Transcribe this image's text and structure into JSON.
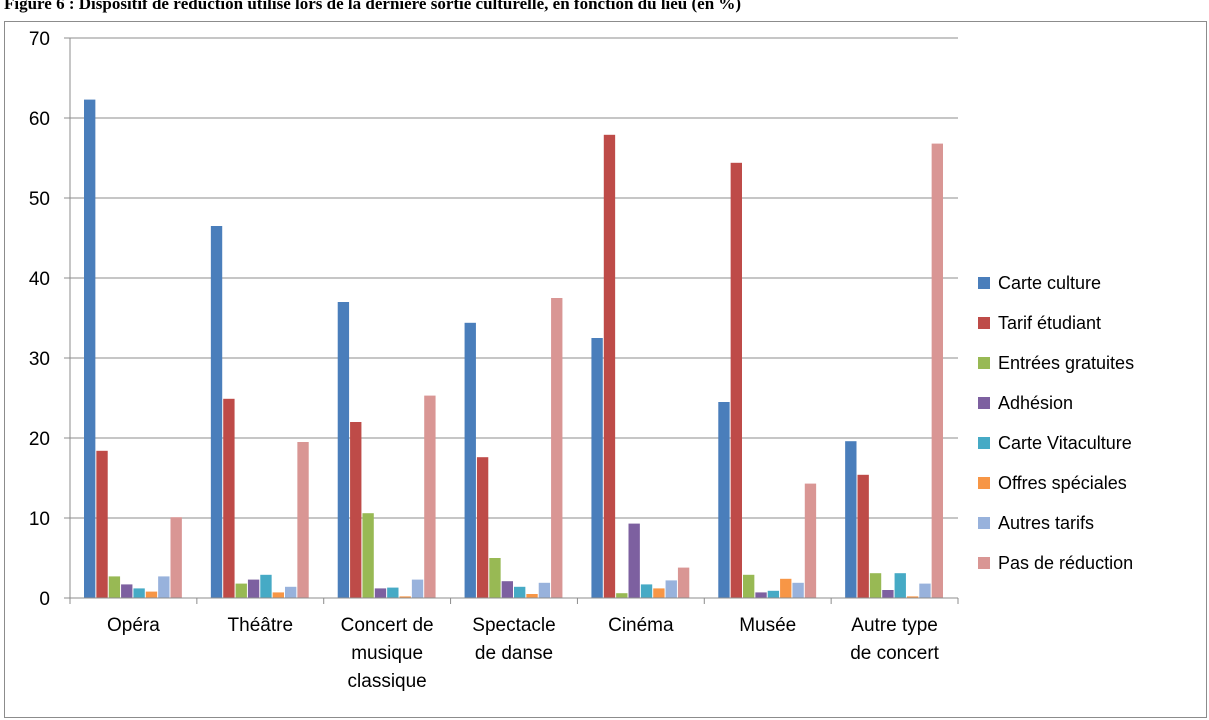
{
  "page": {
    "figure_title": "Figure 6 : Dispositif de réduction utilisé lors de la dernière sortie culturelle, en fonction du lieu (en %)"
  },
  "chart_data": {
    "type": "bar",
    "title": "",
    "xlabel": "",
    "ylabel": "",
    "ylim": [
      0,
      70
    ],
    "yticks": [
      0,
      10,
      20,
      30,
      40,
      50,
      60,
      70
    ],
    "grid": true,
    "legend_position": "right",
    "categories": [
      [
        "Opéra"
      ],
      [
        "Théâtre"
      ],
      [
        "Concert de",
        "musique",
        "classique"
      ],
      [
        "Spectacle",
        "de danse"
      ],
      [
        "Cinéma"
      ],
      [
        "Musée"
      ],
      [
        "Autre type",
        "de concert"
      ]
    ],
    "series": [
      {
        "name": "Carte culture",
        "color": "#4a7ebb",
        "values": [
          62.3,
          46.5,
          37.0,
          34.4,
          32.5,
          24.5,
          19.6
        ]
      },
      {
        "name": "Tarif étudiant",
        "color": "#be4b48",
        "values": [
          18.4,
          24.9,
          22.0,
          17.6,
          57.9,
          54.4,
          15.4
        ]
      },
      {
        "name": "Entrées gratuites",
        "color": "#98b954",
        "values": [
          2.7,
          1.8,
          10.6,
          5.0,
          0.6,
          2.9,
          3.1
        ]
      },
      {
        "name": "Adhésion",
        "color": "#7d60a0",
        "values": [
          1.7,
          2.3,
          1.2,
          2.1,
          9.3,
          0.7,
          1.0
        ]
      },
      {
        "name": "Carte Vitaculture",
        "color": "#46aac5",
        "values": [
          1.2,
          2.9,
          1.3,
          1.4,
          1.7,
          0.9,
          3.1
        ]
      },
      {
        "name": "Offres spéciales",
        "color": "#f79646",
        "values": [
          0.8,
          0.7,
          0.2,
          0.5,
          1.2,
          2.4,
          0.2
        ]
      },
      {
        "name": "Autres tarifs",
        "color": "#98b2dc",
        "values": [
          2.7,
          1.4,
          2.3,
          1.9,
          2.2,
          1.9,
          1.8
        ]
      },
      {
        "name": "Pas de réduction",
        "color": "#d99694",
        "values": [
          10.1,
          19.5,
          25.3,
          37.5,
          3.8,
          14.3,
          56.8
        ]
      }
    ]
  }
}
